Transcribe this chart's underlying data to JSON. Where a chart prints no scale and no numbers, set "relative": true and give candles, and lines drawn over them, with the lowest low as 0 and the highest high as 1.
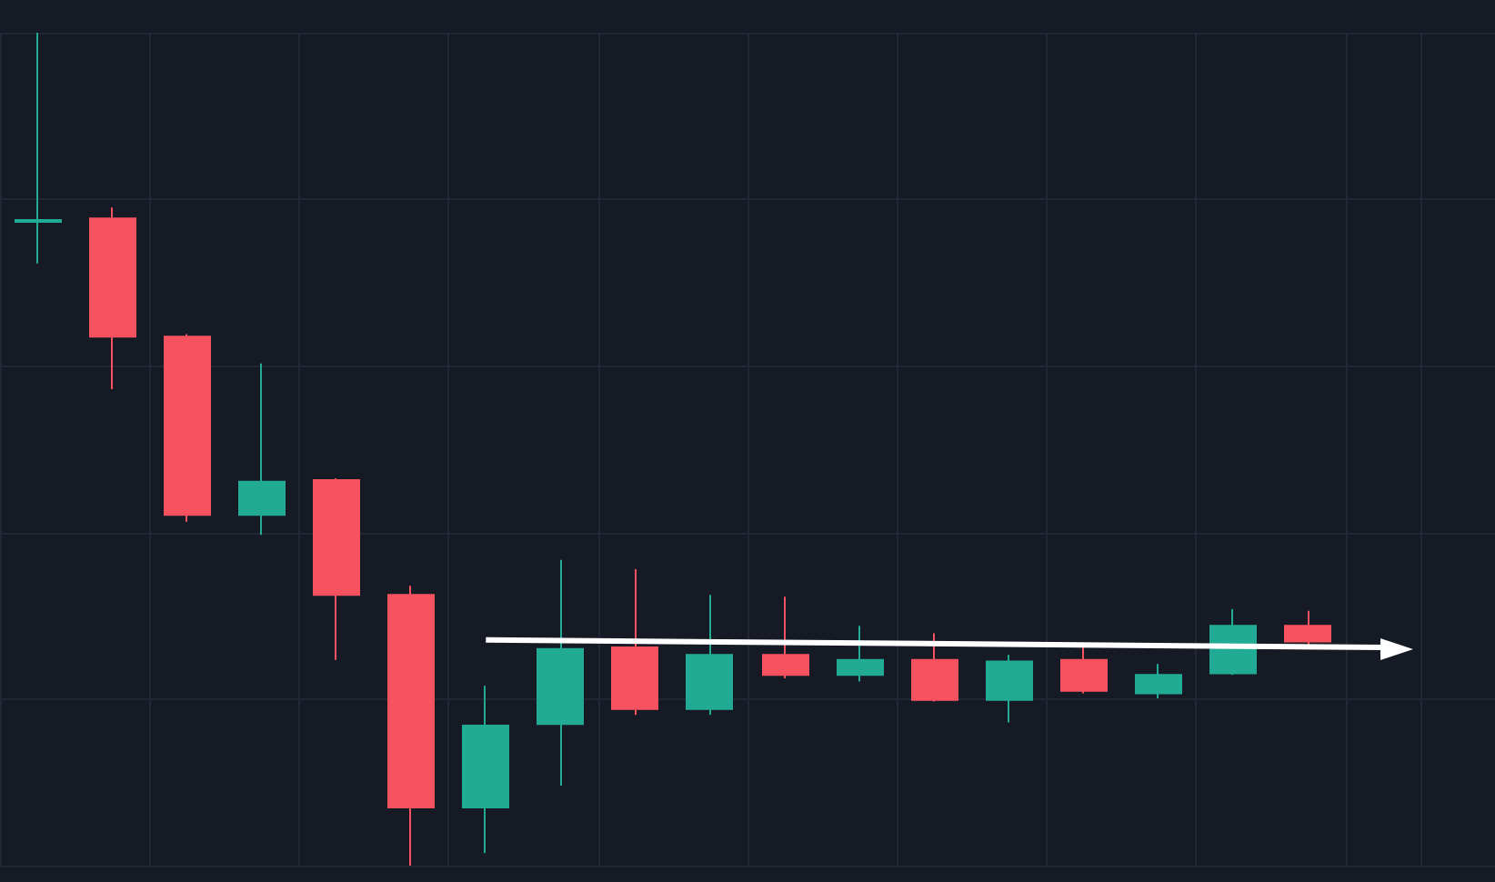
{
  "chart_data": {
    "type": "candlestick",
    "relative": true,
    "grid": true,
    "categories": [
      null,
      null,
      null,
      null,
      null,
      null,
      null,
      null,
      null,
      null,
      null,
      null,
      null,
      null,
      null,
      null,
      null,
      null,
      null,
      null
    ],
    "series": [
      {
        "type": "line",
        "color": "#ffffff",
        "values": [
          null,
          null,
          null,
          null,
          null,
          null,
          0.271,
          null,
          null,
          null,
          null,
          null,
          null,
          null,
          null,
          null,
          null,
          null,
          0.262,
          null
        ]
      }
    ],
    "ohlc": [
      [
        0.773,
        1,
        0.723,
        0.775
      ],
      [
        0.777,
        0.79,
        0.572,
        0.635
      ],
      [
        0.635,
        0.638,
        0.413,
        0.421
      ],
      [
        0.421,
        0.603,
        0.397,
        0.461
      ],
      [
        0.463,
        0.465,
        0.247,
        0.325
      ],
      [
        0.325,
        0.336,
        0,
        0.07
      ],
      [
        0.07,
        0.216,
        0.015,
        0.168
      ],
      [
        0.17,
        0.367,
        0.096,
        0.26
      ],
      [
        0.262,
        0.356,
        0.181,
        0.188
      ],
      [
        0.188,
        0.325,
        0.181,
        0.253
      ],
      [
        0.253,
        0.323,
        0.225,
        0.229
      ],
      [
        0.229,
        0.288,
        0.221,
        0.247
      ],
      [
        0.247,
        0.279,
        0.197,
        0.199
      ],
      [
        0.199,
        0.253,
        0.172,
        0.245
      ],
      [
        0.247,
        0.262,
        0.207,
        0.21
      ],
      [
        0.207,
        0.242,
        0.201,
        0.229
      ],
      [
        0.231,
        0.308,
        0.229,
        0.288
      ],
      [
        0.288,
        0.306,
        0.264,
        0.269
      ],
      null,
      null
    ],
    "colors": [
      "#22ab94",
      "#f7525f",
      "#f7525f",
      "#22ab94",
      "#f7525f",
      "#f7525f",
      "#22ab94",
      "#22ab94",
      "#f7525f",
      "#22ab94",
      "#f7525f",
      "#22ab94",
      "#f7525f",
      "#22ab94",
      "#f7525f",
      "#22ab94",
      "#22ab94",
      "#f7525f",
      null,
      null
    ]
  }
}
